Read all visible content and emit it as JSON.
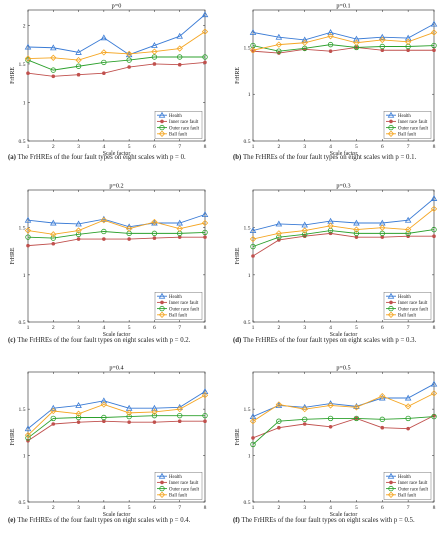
{
  "chart_data": [
    {
      "type": "line",
      "title": "p=0",
      "caption_letter": "(a)",
      "caption": "The FrHREs of the four fault types on eight scales with p = 0.",
      "xlabel": "Scale factor",
      "ylabel": "FrHRE",
      "xlim": [
        1,
        8
      ],
      "ylim": [
        0.5,
        2.2
      ],
      "yticks": [
        "0.5",
        "1",
        "1.5",
        "2"
      ],
      "x": [
        1,
        2,
        3,
        4,
        5,
        6,
        7,
        8
      ],
      "legend": "bottom-right",
      "series": [
        {
          "name": "Health",
          "color": "#3a7bd5",
          "marker": "triangle",
          "values": [
            1.72,
            1.71,
            1.65,
            1.84,
            1.62,
            1.74,
            1.86,
            2.14
          ]
        },
        {
          "name": "Inner race fault",
          "color": "#c0504d",
          "marker": "dot",
          "values": [
            1.38,
            1.34,
            1.36,
            1.38,
            1.46,
            1.5,
            1.49,
            1.52
          ]
        },
        {
          "name": "Outer race fault",
          "color": "#2ca02c",
          "marker": "circle",
          "values": [
            1.55,
            1.42,
            1.47,
            1.52,
            1.55,
            1.59,
            1.59,
            1.59
          ]
        },
        {
          "name": "Ball fault",
          "color": "#f5a623",
          "marker": "diamond",
          "values": [
            1.57,
            1.58,
            1.55,
            1.65,
            1.63,
            1.66,
            1.7,
            1.92
          ]
        }
      ]
    },
    {
      "type": "line",
      "title": "p=0.1",
      "caption_letter": "(b)",
      "caption": "The FrHREs of the four fault types on eight scales with p = 0.1.",
      "xlabel": "Scale factor",
      "ylabel": "FrHRE",
      "xlim": [
        1,
        8
      ],
      "ylim": [
        0.5,
        1.9
      ],
      "yticks": [
        "0.5",
        "1",
        "1.5"
      ],
      "x": [
        1,
        2,
        3,
        4,
        5,
        6,
        7,
        8
      ],
      "legend": "bottom-right",
      "series": [
        {
          "name": "Health",
          "color": "#3a7bd5",
          "marker": "triangle",
          "values": [
            1.66,
            1.61,
            1.58,
            1.66,
            1.59,
            1.61,
            1.6,
            1.75
          ]
        },
        {
          "name": "Inner race fault",
          "color": "#c0504d",
          "marker": "dot",
          "values": [
            1.46,
            1.44,
            1.48,
            1.46,
            1.5,
            1.47,
            1.47,
            1.47
          ]
        },
        {
          "name": "Outer race fault",
          "color": "#2ca02c",
          "marker": "circle",
          "values": [
            1.52,
            1.46,
            1.49,
            1.53,
            1.5,
            1.51,
            1.51,
            1.52
          ]
        },
        {
          "name": "Ball fault",
          "color": "#f5a623",
          "marker": "diamond",
          "values": [
            1.47,
            1.53,
            1.55,
            1.62,
            1.55,
            1.58,
            1.56,
            1.66
          ]
        }
      ]
    },
    {
      "type": "line",
      "title": "p=0.2",
      "caption_letter": "(c)",
      "caption": "The FrHREs of the four fault types on eight scales with p = 0.2.",
      "xlabel": "Scale factor",
      "ylabel": "FrHRE",
      "xlim": [
        1,
        8
      ],
      "ylim": [
        0.5,
        1.9
      ],
      "yticks": [
        "0.5",
        "1",
        "1.5"
      ],
      "x": [
        1,
        2,
        3,
        4,
        5,
        6,
        7,
        8
      ],
      "legend": "bottom-right",
      "series": [
        {
          "name": "Health",
          "color": "#3a7bd5",
          "marker": "triangle",
          "values": [
            1.58,
            1.55,
            1.54,
            1.59,
            1.51,
            1.55,
            1.55,
            1.64
          ]
        },
        {
          "name": "Inner race fault",
          "color": "#c0504d",
          "marker": "dot",
          "values": [
            1.31,
            1.33,
            1.38,
            1.38,
            1.38,
            1.39,
            1.4,
            1.4
          ]
        },
        {
          "name": "Outer race fault",
          "color": "#2ca02c",
          "marker": "circle",
          "values": [
            1.4,
            1.39,
            1.43,
            1.46,
            1.44,
            1.44,
            1.44,
            1.45
          ]
        },
        {
          "name": "Ball fault",
          "color": "#f5a623",
          "marker": "diamond",
          "values": [
            1.47,
            1.43,
            1.47,
            1.58,
            1.49,
            1.56,
            1.49,
            1.55
          ]
        }
      ]
    },
    {
      "type": "line",
      "title": "p=0.3",
      "caption_letter": "(d)",
      "caption": "The FrHREs of the four fault types on eight scales with p = 0.3.",
      "xlabel": "Scale factor",
      "ylabel": "FrHRE",
      "xlim": [
        1,
        8
      ],
      "ylim": [
        0.5,
        1.9
      ],
      "yticks": [
        "0.5",
        "1",
        "1.5"
      ],
      "x": [
        1,
        2,
        3,
        4,
        5,
        6,
        7,
        8
      ],
      "legend": "bottom-right",
      "series": [
        {
          "name": "Health",
          "color": "#3a7bd5",
          "marker": "triangle",
          "values": [
            1.47,
            1.54,
            1.53,
            1.57,
            1.55,
            1.55,
            1.58,
            1.81
          ]
        },
        {
          "name": "Inner race fault",
          "color": "#c0504d",
          "marker": "dot",
          "values": [
            1.2,
            1.37,
            1.41,
            1.44,
            1.4,
            1.4,
            1.41,
            1.41
          ]
        },
        {
          "name": "Outer race fault",
          "color": "#2ca02c",
          "marker": "circle",
          "values": [
            1.3,
            1.4,
            1.43,
            1.47,
            1.44,
            1.44,
            1.44,
            1.48
          ]
        },
        {
          "name": "Ball fault",
          "color": "#f5a623",
          "marker": "diamond",
          "values": [
            1.38,
            1.44,
            1.47,
            1.52,
            1.48,
            1.5,
            1.48,
            1.7
          ]
        }
      ]
    },
    {
      "type": "line",
      "title": "p=0.4",
      "caption_letter": "(e)",
      "caption": "The FrHREs of the four fault types on eight scales with p = 0.4.",
      "xlabel": "Scale factor",
      "ylabel": "FrHRE",
      "xlim": [
        1,
        8
      ],
      "ylim": [
        0.5,
        1.9
      ],
      "yticks": [
        "0.5",
        "1",
        "1.5"
      ],
      "x": [
        1,
        2,
        3,
        4,
        5,
        6,
        7,
        8
      ],
      "legend": "bottom-right",
      "series": [
        {
          "name": "Health",
          "color": "#3a7bd5",
          "marker": "triangle",
          "values": [
            1.29,
            1.51,
            1.54,
            1.59,
            1.51,
            1.51,
            1.52,
            1.69
          ]
        },
        {
          "name": "Inner race fault",
          "color": "#c0504d",
          "marker": "dot",
          "values": [
            1.16,
            1.34,
            1.36,
            1.37,
            1.36,
            1.36,
            1.37,
            1.37
          ]
        },
        {
          "name": "Outer race fault",
          "color": "#2ca02c",
          "marker": "circle",
          "values": [
            1.19,
            1.4,
            1.41,
            1.41,
            1.42,
            1.43,
            1.43,
            1.43
          ]
        },
        {
          "name": "Ball fault",
          "color": "#f5a623",
          "marker": "diamond",
          "values": [
            1.22,
            1.48,
            1.45,
            1.55,
            1.46,
            1.47,
            1.5,
            1.65
          ]
        }
      ]
    },
    {
      "type": "line",
      "title": "p=0.5",
      "caption_letter": "(f)",
      "caption": "The FrHREs of the four fault types on eight scales with p = 0.5.",
      "xlabel": "Scale factor",
      "ylabel": "FrHRE",
      "xlim": [
        1,
        8
      ],
      "ylim": [
        0.5,
        1.9
      ],
      "yticks": [
        "0.5",
        "1",
        "1.5"
      ],
      "x": [
        1,
        2,
        3,
        4,
        5,
        6,
        7,
        8
      ],
      "legend": "bottom-right",
      "series": [
        {
          "name": "Health",
          "color": "#3a7bd5",
          "marker": "triangle",
          "values": [
            1.42,
            1.54,
            1.52,
            1.56,
            1.53,
            1.62,
            1.62,
            1.77
          ]
        },
        {
          "name": "Inner race fault",
          "color": "#c0504d",
          "marker": "dot",
          "values": [
            1.19,
            1.3,
            1.34,
            1.31,
            1.4,
            1.3,
            1.29,
            1.43
          ]
        },
        {
          "name": "Outer race fault",
          "color": "#2ca02c",
          "marker": "circle",
          "values": [
            1.12,
            1.37,
            1.39,
            1.4,
            1.4,
            1.39,
            1.4,
            1.42
          ]
        },
        {
          "name": "Ball fault",
          "color": "#f5a623",
          "marker": "diamond",
          "values": [
            1.37,
            1.55,
            1.5,
            1.54,
            1.52,
            1.64,
            1.53,
            1.67
          ]
        }
      ]
    }
  ]
}
